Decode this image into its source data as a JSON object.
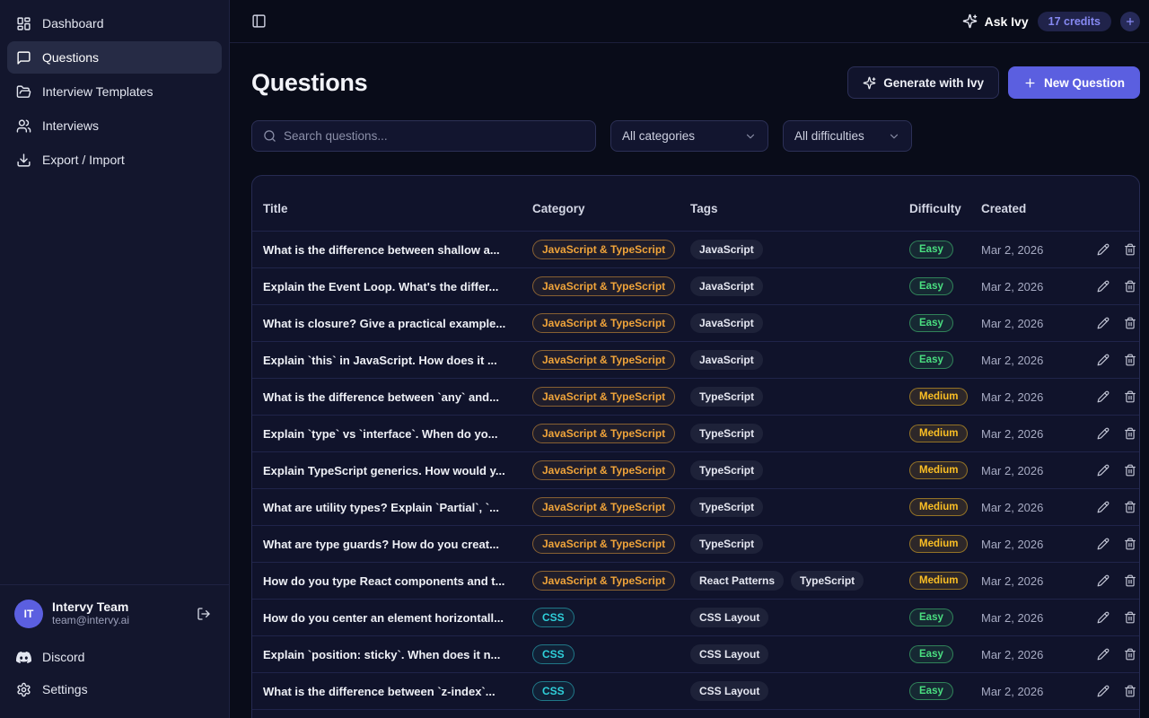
{
  "topbar": {
    "ask_ivy_label": "Ask Ivy",
    "credits_label": "17 credits"
  },
  "sidebar": {
    "items": [
      {
        "label": "Dashboard",
        "icon": "dashboard-icon",
        "active": false
      },
      {
        "label": "Questions",
        "icon": "chat-bubble-icon",
        "active": true
      },
      {
        "label": "Interview Templates",
        "icon": "folder-open-icon",
        "active": false
      },
      {
        "label": "Interviews",
        "icon": "users-icon",
        "active": false
      },
      {
        "label": "Export / Import",
        "icon": "download-icon",
        "active": false
      }
    ],
    "user": {
      "initials": "IT",
      "name": "Intervy Team",
      "email": "team@intervy.ai"
    },
    "footer_items": [
      {
        "label": "Discord",
        "icon": "discord-icon"
      },
      {
        "label": "Settings",
        "icon": "gear-icon"
      }
    ]
  },
  "header": {
    "title": "Questions",
    "generate_button": "Generate with Ivy",
    "new_question_button": "New Question"
  },
  "filters": {
    "search_placeholder": "Search questions...",
    "category_filter": "All categories",
    "difficulty_filter": "All difficulties"
  },
  "table": {
    "columns": [
      "Title",
      "Category",
      "Tags",
      "Difficulty",
      "Created"
    ],
    "rows": [
      {
        "title": "What is the difference between shallow a...",
        "category": "JavaScript & TypeScript",
        "category_style": "amber",
        "tags": [
          "JavaScript"
        ],
        "difficulty": "Easy",
        "created": "Mar 2, 2026"
      },
      {
        "title": "Explain the Event Loop. What's the differ...",
        "category": "JavaScript & TypeScript",
        "category_style": "amber",
        "tags": [
          "JavaScript"
        ],
        "difficulty": "Easy",
        "created": "Mar 2, 2026"
      },
      {
        "title": "What is closure? Give a practical example...",
        "category": "JavaScript & TypeScript",
        "category_style": "amber",
        "tags": [
          "JavaScript"
        ],
        "difficulty": "Easy",
        "created": "Mar 2, 2026"
      },
      {
        "title": "Explain `this` in JavaScript. How does it ...",
        "category": "JavaScript & TypeScript",
        "category_style": "amber",
        "tags": [
          "JavaScript"
        ],
        "difficulty": "Easy",
        "created": "Mar 2, 2026"
      },
      {
        "title": "What is the difference between `any` and...",
        "category": "JavaScript & TypeScript",
        "category_style": "amber",
        "tags": [
          "TypeScript"
        ],
        "difficulty": "Medium",
        "created": "Mar 2, 2026"
      },
      {
        "title": "Explain `type` vs `interface`. When do yo...",
        "category": "JavaScript & TypeScript",
        "category_style": "amber",
        "tags": [
          "TypeScript"
        ],
        "difficulty": "Medium",
        "created": "Mar 2, 2026"
      },
      {
        "title": "Explain TypeScript generics. How would y...",
        "category": "JavaScript & TypeScript",
        "category_style": "amber",
        "tags": [
          "TypeScript"
        ],
        "difficulty": "Medium",
        "created": "Mar 2, 2026"
      },
      {
        "title": "What are utility types? Explain `Partial`, `...",
        "category": "JavaScript & TypeScript",
        "category_style": "amber",
        "tags": [
          "TypeScript"
        ],
        "difficulty": "Medium",
        "created": "Mar 2, 2026"
      },
      {
        "title": "What are type guards? How do you creat...",
        "category": "JavaScript & TypeScript",
        "category_style": "amber",
        "tags": [
          "TypeScript"
        ],
        "difficulty": "Medium",
        "created": "Mar 2, 2026"
      },
      {
        "title": "How do you type React components and t...",
        "category": "JavaScript & TypeScript",
        "category_style": "amber",
        "tags": [
          "React Patterns",
          "TypeScript"
        ],
        "difficulty": "Medium",
        "created": "Mar 2, 2026"
      },
      {
        "title": "How do you center an element horizontall...",
        "category": "CSS",
        "category_style": "cyan",
        "tags": [
          "CSS Layout"
        ],
        "difficulty": "Easy",
        "created": "Mar 2, 2026"
      },
      {
        "title": "Explain `position: sticky`. When does it n...",
        "category": "CSS",
        "category_style": "cyan",
        "tags": [
          "CSS Layout"
        ],
        "difficulty": "Easy",
        "created": "Mar 2, 2026"
      },
      {
        "title": "What is the difference between `z-index`...",
        "category": "CSS",
        "category_style": "cyan",
        "tags": [
          "CSS Layout"
        ],
        "difficulty": "Easy",
        "created": "Mar 2, 2026"
      }
    ]
  },
  "colors": {
    "accent_indigo": "#5b5fe0",
    "badge_amber": "#f0a43a",
    "badge_cyan": "#2fd0da",
    "difficulty_easy": "#4ade80",
    "difficulty_medium": "#fbbf24",
    "page_background": "#090c19",
    "sidebar_background": "#13162d",
    "card_background": "#10132b"
  }
}
